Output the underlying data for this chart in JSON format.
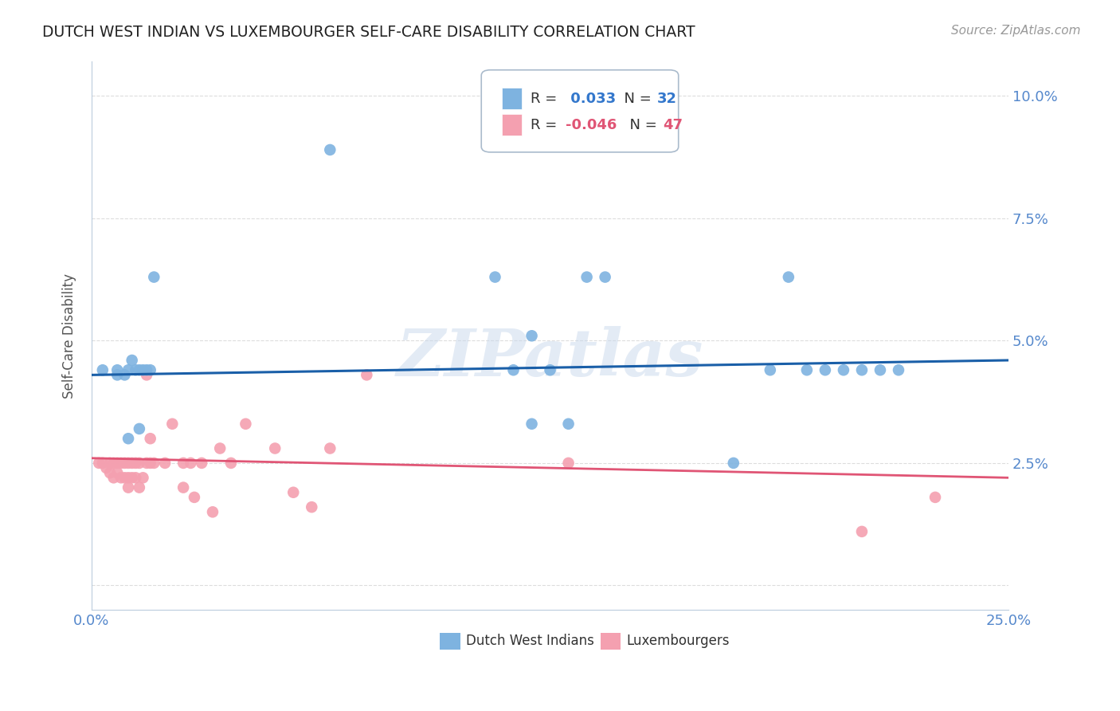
{
  "title": "DUTCH WEST INDIAN VS LUXEMBOURGER SELF-CARE DISABILITY CORRELATION CHART",
  "source": "Source: ZipAtlas.com",
  "ylabel": "Self-Care Disability",
  "xlim": [
    0.0,
    0.25
  ],
  "ylim": [
    -0.005,
    0.107
  ],
  "xticks": [
    0.0,
    0.05,
    0.1,
    0.15,
    0.2,
    0.25
  ],
  "yticks": [
    0.0,
    0.025,
    0.05,
    0.075,
    0.1
  ],
  "blue_color": "#7EB3E0",
  "pink_color": "#F4A0B0",
  "blue_line_color": "#1A5FA8",
  "pink_line_color": "#E05575",
  "legend_blue_R": "0.033",
  "legend_blue_N": "32",
  "legend_pink_R": "-0.046",
  "legend_pink_N": "47",
  "legend_label_blue": "Dutch West Indians",
  "legend_label_pink": "Luxembourgers",
  "blue_x": [
    0.003,
    0.007,
    0.007,
    0.009,
    0.01,
    0.01,
    0.011,
    0.012,
    0.013,
    0.013,
    0.014,
    0.015,
    0.016,
    0.017,
    0.065,
    0.11,
    0.115,
    0.12,
    0.12,
    0.125,
    0.13,
    0.135,
    0.14,
    0.175,
    0.185,
    0.19,
    0.195,
    0.2,
    0.205,
    0.21,
    0.215,
    0.22
  ],
  "blue_y": [
    0.044,
    0.044,
    0.043,
    0.043,
    0.044,
    0.03,
    0.046,
    0.044,
    0.044,
    0.032,
    0.044,
    0.044,
    0.044,
    0.063,
    0.089,
    0.063,
    0.044,
    0.033,
    0.051,
    0.044,
    0.033,
    0.063,
    0.063,
    0.025,
    0.044,
    0.063,
    0.044,
    0.044,
    0.044,
    0.044,
    0.044,
    0.044
  ],
  "pink_x": [
    0.002,
    0.003,
    0.004,
    0.005,
    0.005,
    0.006,
    0.006,
    0.007,
    0.007,
    0.008,
    0.008,
    0.009,
    0.009,
    0.01,
    0.01,
    0.01,
    0.011,
    0.011,
    0.012,
    0.012,
    0.013,
    0.013,
    0.014,
    0.015,
    0.015,
    0.016,
    0.016,
    0.017,
    0.02,
    0.022,
    0.025,
    0.025,
    0.027,
    0.028,
    0.03,
    0.033,
    0.035,
    0.038,
    0.042,
    0.05,
    0.055,
    0.06,
    0.065,
    0.075,
    0.13,
    0.21,
    0.23
  ],
  "pink_y": [
    0.025,
    0.025,
    0.024,
    0.025,
    0.023,
    0.025,
    0.022,
    0.025,
    0.023,
    0.025,
    0.022,
    0.025,
    0.022,
    0.025,
    0.022,
    0.02,
    0.025,
    0.022,
    0.025,
    0.022,
    0.025,
    0.02,
    0.022,
    0.043,
    0.025,
    0.025,
    0.03,
    0.025,
    0.025,
    0.033,
    0.025,
    0.02,
    0.025,
    0.018,
    0.025,
    0.015,
    0.028,
    0.025,
    0.033,
    0.028,
    0.019,
    0.016,
    0.028,
    0.043,
    0.025,
    0.011,
    0.018
  ],
  "watermark": "ZIPatlas",
  "background_color": "#FFFFFF",
  "grid_color": "#DDDDDD"
}
